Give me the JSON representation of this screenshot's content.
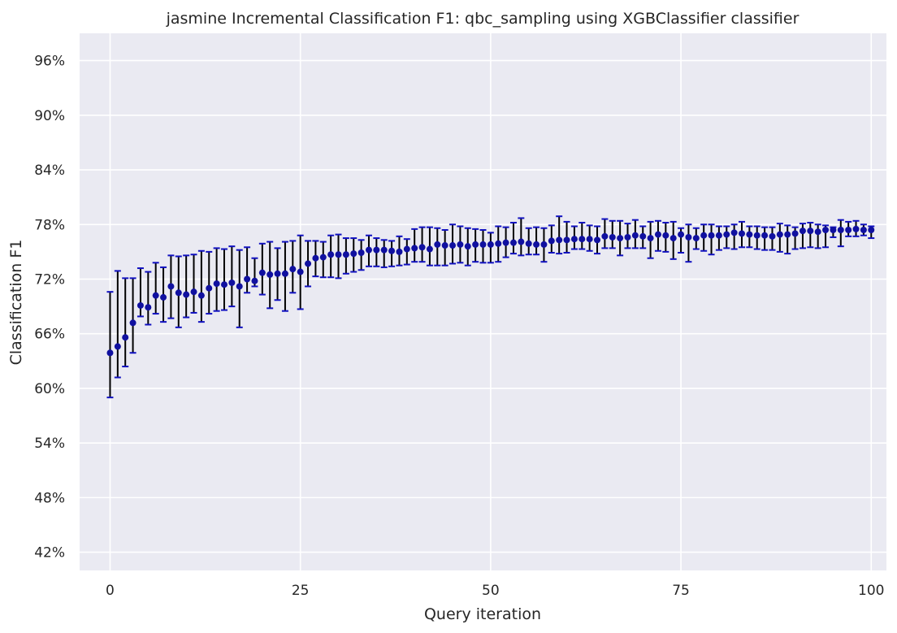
{
  "chart_data": {
    "type": "scatter",
    "title": "jasmine Incremental Classification F1: qbc_sampling using XGBClassifier classifier",
    "xlabel": "Query iteration",
    "ylabel": "Classification F1",
    "xlim": [
      -4,
      102
    ],
    "ylim": [
      40,
      99
    ],
    "x_ticks": [
      0,
      25,
      50,
      75,
      100
    ],
    "x_tick_labels": [
      "0",
      "25",
      "50",
      "75",
      "100"
    ],
    "y_ticks": [
      42,
      48,
      54,
      60,
      66,
      72,
      78,
      84,
      90,
      96
    ],
    "y_tick_labels": [
      "42%",
      "48%",
      "54%",
      "60%",
      "66%",
      "72%",
      "78%",
      "84%",
      "90%",
      "96%"
    ],
    "grid": true,
    "background_color": "#eaeaf2",
    "grid_color": "#ffffff",
    "marker_color": "#1010a0",
    "errorbar_color": "#000000",
    "cap_color": "#1010c0",
    "series": [
      {
        "x": [
          0,
          1,
          2,
          3,
          4,
          5,
          6,
          7,
          8,
          9,
          10,
          11,
          12,
          13,
          14,
          15,
          16,
          17,
          18,
          19,
          20,
          21,
          22,
          23,
          24,
          25,
          26,
          27,
          28,
          29,
          30,
          31,
          32,
          33,
          34,
          35,
          36,
          37,
          38,
          39,
          40,
          41,
          42,
          43,
          44,
          45,
          46,
          47,
          48,
          49,
          50,
          51,
          52,
          53,
          54,
          55,
          56,
          57,
          58,
          59,
          60,
          61,
          62,
          63,
          64,
          65,
          66,
          67,
          68,
          69,
          70,
          71,
          72,
          73,
          74,
          75,
          76,
          77,
          78,
          79,
          80,
          81,
          82,
          83,
          84,
          85,
          86,
          87,
          88,
          89,
          90,
          91,
          92,
          93,
          94,
          95,
          96,
          97,
          98,
          99,
          100
        ],
        "y": [
          63.9,
          64.6,
          65.6,
          67.2,
          69.1,
          68.9,
          70.2,
          70.0,
          71.2,
          70.5,
          70.3,
          70.6,
          70.2,
          71.0,
          71.5,
          71.4,
          71.6,
          71.2,
          72.0,
          71.8,
          72.7,
          72.5,
          72.6,
          72.6,
          73.1,
          72.8,
          73.7,
          74.3,
          74.4,
          74.7,
          74.7,
          74.7,
          74.8,
          74.9,
          75.2,
          75.2,
          75.2,
          75.1,
          75.0,
          75.3,
          75.4,
          75.5,
          75.3,
          75.8,
          75.7,
          75.7,
          75.8,
          75.6,
          75.8,
          75.8,
          75.8,
          75.9,
          76.0,
          76.0,
          76.1,
          75.9,
          75.8,
          75.8,
          76.2,
          76.3,
          76.3,
          76.4,
          76.4,
          76.4,
          76.3,
          76.7,
          76.6,
          76.5,
          76.6,
          76.8,
          76.7,
          76.5,
          76.9,
          76.8,
          76.5,
          76.9,
          76.6,
          76.5,
          76.8,
          76.8,
          76.8,
          76.9,
          77.1,
          77.0,
          76.9,
          76.8,
          76.8,
          76.7,
          76.9,
          76.9,
          77.0,
          77.3,
          77.3,
          77.2,
          77.4,
          77.4,
          77.4,
          77.4,
          77.5,
          77.4,
          77.4
        ],
        "lower": [
          59.0,
          61.2,
          62.4,
          63.9,
          67.9,
          67.0,
          68.2,
          67.3,
          67.7,
          66.7,
          67.8,
          68.3,
          67.3,
          68.2,
          68.5,
          68.6,
          69.0,
          66.7,
          70.5,
          71.2,
          70.3,
          68.8,
          69.7,
          68.5,
          70.5,
          68.7,
          71.2,
          72.3,
          72.2,
          72.2,
          72.1,
          72.6,
          72.8,
          73.0,
          73.4,
          73.4,
          73.3,
          73.4,
          73.5,
          73.6,
          73.9,
          73.9,
          73.5,
          73.5,
          73.5,
          73.7,
          73.8,
          73.5,
          73.9,
          73.8,
          73.8,
          73.9,
          74.4,
          74.8,
          74.6,
          74.7,
          74.7,
          73.9,
          74.9,
          74.8,
          74.9,
          75.3,
          75.3,
          75.1,
          74.8,
          75.4,
          75.4,
          74.6,
          75.4,
          75.4,
          75.4,
          74.3,
          75.1,
          75.0,
          74.2,
          74.9,
          73.9,
          75.3,
          75.1,
          74.7,
          75.2,
          75.4,
          75.3,
          75.5,
          75.5,
          75.3,
          75.2,
          75.2,
          75.0,
          74.8,
          75.3,
          75.4,
          75.5,
          75.4,
          75.5,
          76.6,
          75.6,
          76.7,
          76.7,
          76.8,
          76.5
        ],
        "upper": [
          70.6,
          72.9,
          72.1,
          72.1,
          73.2,
          72.8,
          73.8,
          73.3,
          74.6,
          74.5,
          74.6,
          74.7,
          75.1,
          75.0,
          75.4,
          75.3,
          75.6,
          75.2,
          75.5,
          74.3,
          75.9,
          76.1,
          75.4,
          76.1,
          76.2,
          76.8,
          76.2,
          76.2,
          76.1,
          76.8,
          76.9,
          76.5,
          76.5,
          76.3,
          76.8,
          76.5,
          76.3,
          76.2,
          76.7,
          76.4,
          77.5,
          77.7,
          77.7,
          77.6,
          77.4,
          78.0,
          77.8,
          77.6,
          77.5,
          77.4,
          77.1,
          77.8,
          77.7,
          78.2,
          78.7,
          77.6,
          77.7,
          77.6,
          77.9,
          78.9,
          78.3,
          77.8,
          78.2,
          77.9,
          77.8,
          78.6,
          78.4,
          78.4,
          78.1,
          78.5,
          77.8,
          78.3,
          78.4,
          78.2,
          78.3,
          77.6,
          78.0,
          77.6,
          78.0,
          78.0,
          77.8,
          77.8,
          78.0,
          78.3,
          77.8,
          77.8,
          77.7,
          77.7,
          78.1,
          77.9,
          77.7,
          78.1,
          78.2,
          78.0,
          77.9,
          77.7,
          78.5,
          78.3,
          78.4,
          78.0,
          77.8
        ]
      }
    ]
  }
}
